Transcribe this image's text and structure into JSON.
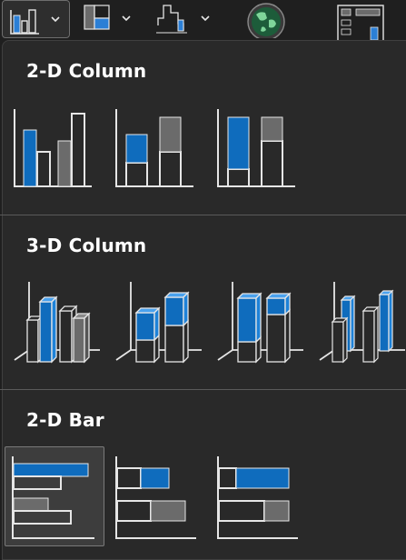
{
  "ribbon": {
    "buttons": [
      {
        "name": "insert-column-or-bar-chart",
        "icon": "column-chart-icon",
        "has_dropdown": true,
        "active": true
      },
      {
        "name": "insert-hierarchy-chart",
        "icon": "hierarchy-chart-icon",
        "has_dropdown": true,
        "active": false
      },
      {
        "name": "insert-waterfall-chart",
        "icon": "waterfall-chart-icon",
        "has_dropdown": true,
        "active": false
      },
      {
        "name": "maps",
        "icon": "globe-map-icon",
        "has_dropdown": false,
        "active": false
      },
      {
        "name": "pivot-chart",
        "icon": "pivot-chart-icon",
        "has_dropdown": false,
        "active": false
      }
    ]
  },
  "sections": [
    {
      "title": "2-D Column",
      "items": [
        {
          "name": "clustered-column",
          "icon": "clustered-column-icon"
        },
        {
          "name": "stacked-column",
          "icon": "stacked-column-icon"
        },
        {
          "name": "100-percent-stacked-column",
          "icon": "100-percent-stacked-column-icon"
        }
      ]
    },
    {
      "title": "3-D Column",
      "items": [
        {
          "name": "3d-clustered-column",
          "icon": "3d-clustered-column-icon"
        },
        {
          "name": "3d-stacked-column",
          "icon": "3d-stacked-column-icon"
        },
        {
          "name": "3d-100-percent-stacked-column",
          "icon": "3d-100-percent-stacked-column-icon"
        },
        {
          "name": "3d-column",
          "icon": "3d-column-icon"
        }
      ]
    },
    {
      "title": "2-D Bar",
      "items": [
        {
          "name": "clustered-bar",
          "icon": "clustered-bar-icon",
          "selected": true
        },
        {
          "name": "stacked-bar",
          "icon": "stacked-bar-icon"
        },
        {
          "name": "100-percent-stacked-bar",
          "icon": "100-percent-stacked-bar-icon"
        }
      ]
    }
  ],
  "colors": {
    "blue": "#0f6cbd",
    "gray": "#6b6b6b",
    "outline": "#e6e6e6",
    "panel": "#292929",
    "heading": "#ffffff"
  }
}
